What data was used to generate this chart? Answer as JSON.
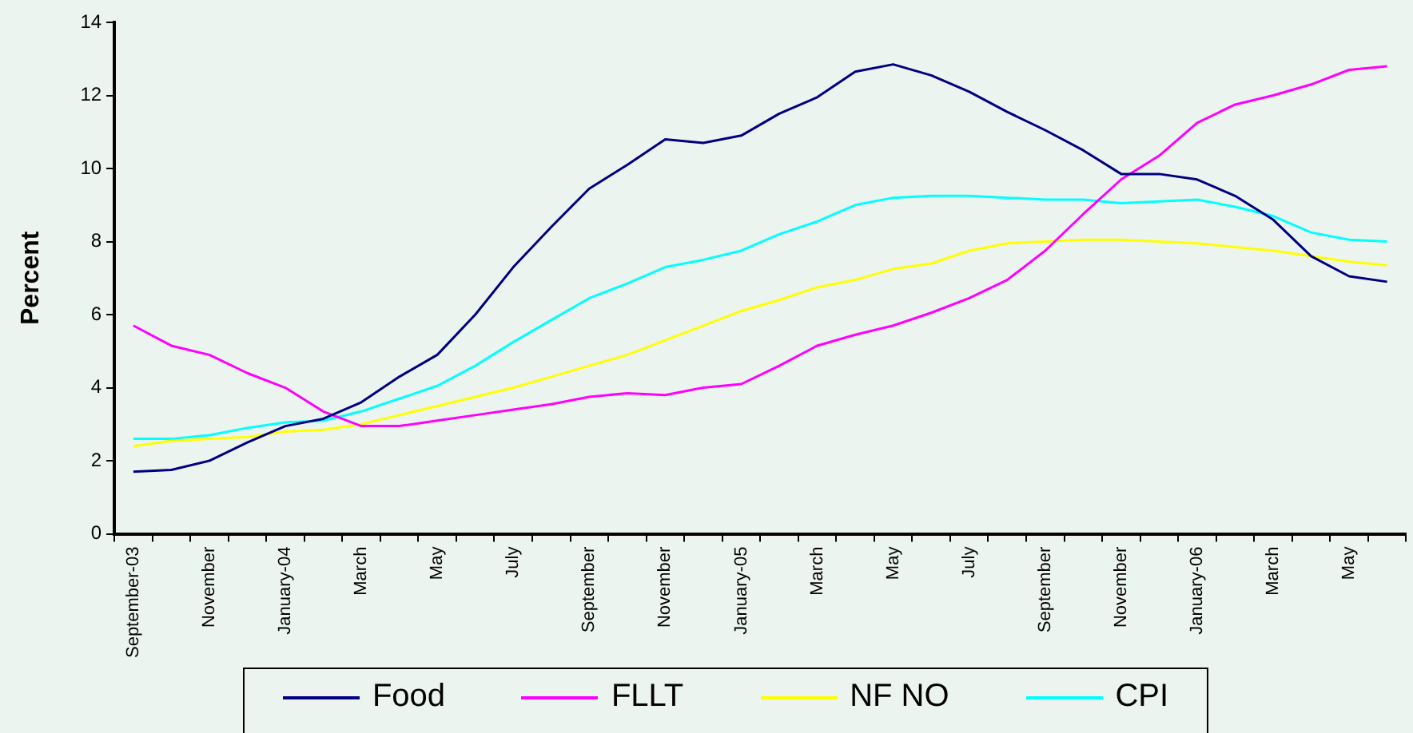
{
  "chart_data": {
    "type": "line",
    "ylabel": "Percent",
    "categories": [
      "September-03",
      null,
      "November",
      null,
      "January-04",
      null,
      "March",
      null,
      "May",
      null,
      "July",
      null,
      "September",
      null,
      "November",
      null,
      "January-05",
      null,
      "March",
      null,
      "May",
      null,
      "July",
      null,
      "September",
      null,
      "November",
      null,
      "January-06",
      null,
      "March",
      null,
      "May",
      null
    ],
    "series": [
      {
        "name": "Food",
        "color": "#000080",
        "values": [
          1.7,
          1.75,
          2.0,
          2.5,
          2.95,
          3.15,
          3.6,
          4.3,
          4.9,
          6.0,
          7.3,
          8.4,
          9.45,
          10.1,
          10.8,
          10.7,
          10.9,
          11.5,
          11.95,
          12.65,
          12.85,
          12.55,
          12.1,
          11.55,
          11.05,
          10.5,
          9.85,
          9.85,
          9.7,
          9.25,
          8.6,
          7.6,
          7.05,
          6.9
        ]
      },
      {
        "name": "FLLT",
        "color": "#ff00ff",
        "values": [
          5.7,
          5.15,
          4.9,
          4.4,
          4.0,
          3.35,
          2.95,
          2.95,
          3.1,
          3.25,
          3.4,
          3.55,
          3.75,
          3.85,
          3.8,
          4.0,
          4.1,
          4.6,
          5.15,
          5.45,
          5.7,
          6.05,
          6.45,
          6.95,
          7.75,
          8.75,
          9.7,
          10.35,
          11.25,
          11.75,
          12.0,
          12.3,
          12.7,
          12.8
        ]
      },
      {
        "name": "NF NO",
        "color": "#ffff00",
        "values": [
          2.4,
          2.55,
          2.6,
          2.65,
          2.8,
          2.85,
          3.0,
          3.25,
          3.5,
          3.75,
          4.0,
          4.3,
          4.6,
          4.9,
          5.3,
          5.7,
          6.1,
          6.4,
          6.75,
          6.95,
          7.25,
          7.4,
          7.75,
          7.95,
          8.0,
          8.05,
          8.05,
          8.0,
          7.95,
          7.85,
          7.75,
          7.6,
          7.45,
          7.35
        ]
      },
      {
        "name": "CPI",
        "color": "#00ffff",
        "values": [
          2.6,
          2.6,
          2.7,
          2.9,
          3.05,
          3.1,
          3.35,
          3.7,
          4.05,
          4.6,
          5.25,
          5.85,
          6.45,
          6.85,
          7.3,
          7.5,
          7.75,
          8.2,
          8.55,
          9.0,
          9.2,
          9.25,
          9.25,
          9.2,
          9.15,
          9.15,
          9.05,
          9.1,
          9.15,
          8.95,
          8.7,
          8.25,
          8.05,
          8.0
        ]
      }
    ],
    "ylim": [
      0,
      14
    ],
    "yticks": [
      0,
      2,
      4,
      6,
      8,
      10,
      12,
      14
    ],
    "grid": false,
    "legend": "bottom",
    "marker": "none",
    "line_style": "solid"
  }
}
